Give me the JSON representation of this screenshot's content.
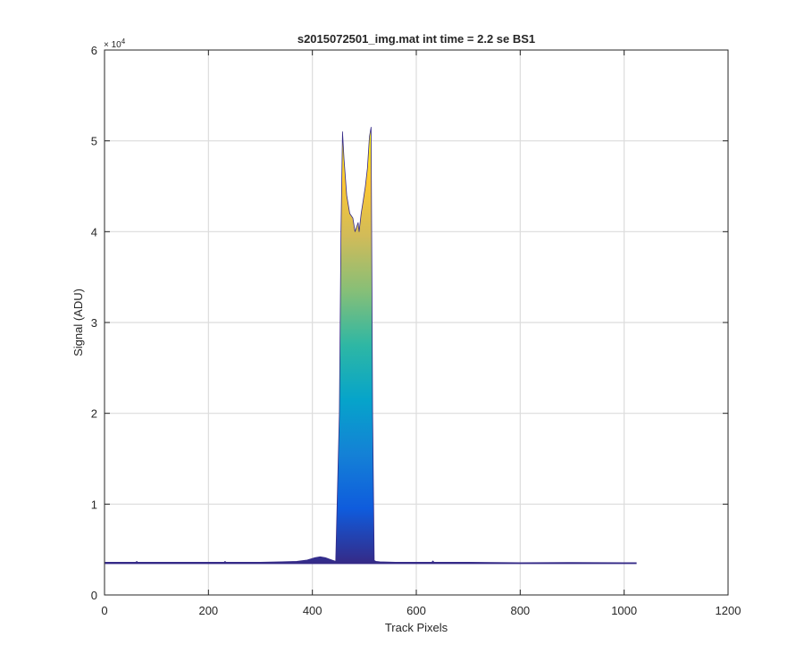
{
  "chart_data": {
    "type": "area",
    "title": "s2015072501_img.mat int time = 2.2 se   BS1",
    "xlabel": "Track Pixels",
    "ylabel": "Signal (ADU)",
    "xlim": [
      0,
      1200
    ],
    "ylim": [
      0,
      60000
    ],
    "x_ticks": [
      "0",
      "200",
      "400",
      "600",
      "800",
      "1000",
      "1200"
    ],
    "y_ticks": [
      "0",
      "1",
      "2",
      "3",
      "4",
      "5",
      "6"
    ],
    "y_exponent_label": "× 10",
    "y_exponent_power": "4",
    "grid": true,
    "colormap": "parula",
    "colormap_stops": [
      "#352a87",
      "#0f5cdd",
      "#1481d6",
      "#06a4ca",
      "#2eb7a4",
      "#87bf77",
      "#d1bb59",
      "#fec832",
      "#f9fb0e"
    ],
    "series": [
      {
        "x": [
          1,
          60,
          62,
          64,
          120,
          230,
          232,
          234,
          300,
          340,
          370,
          390,
          405,
          415,
          425,
          435,
          445,
          452,
          455,
          458,
          461,
          466,
          472,
          478,
          482,
          485,
          488,
          490,
          494,
          498,
          502,
          506,
          510,
          513,
          516,
          519,
          522,
          530,
          560,
          600,
          630,
          632,
          634,
          700,
          800,
          900,
          1000,
          1024
        ],
        "values": [
          3600,
          3600,
          3700,
          3600,
          3600,
          3600,
          3700,
          3600,
          3600,
          3650,
          3700,
          3850,
          4100,
          4200,
          4100,
          3900,
          3700,
          20000,
          40000,
          51000,
          48000,
          44000,
          42000,
          41500,
          40000,
          40500,
          41000,
          40000,
          42000,
          43500,
          45000,
          47000,
          50500,
          51500,
          20000,
          3800,
          3700,
          3650,
          3600,
          3600,
          3600,
          3750,
          3600,
          3600,
          3550,
          3580,
          3550,
          3550
        ]
      }
    ]
  }
}
